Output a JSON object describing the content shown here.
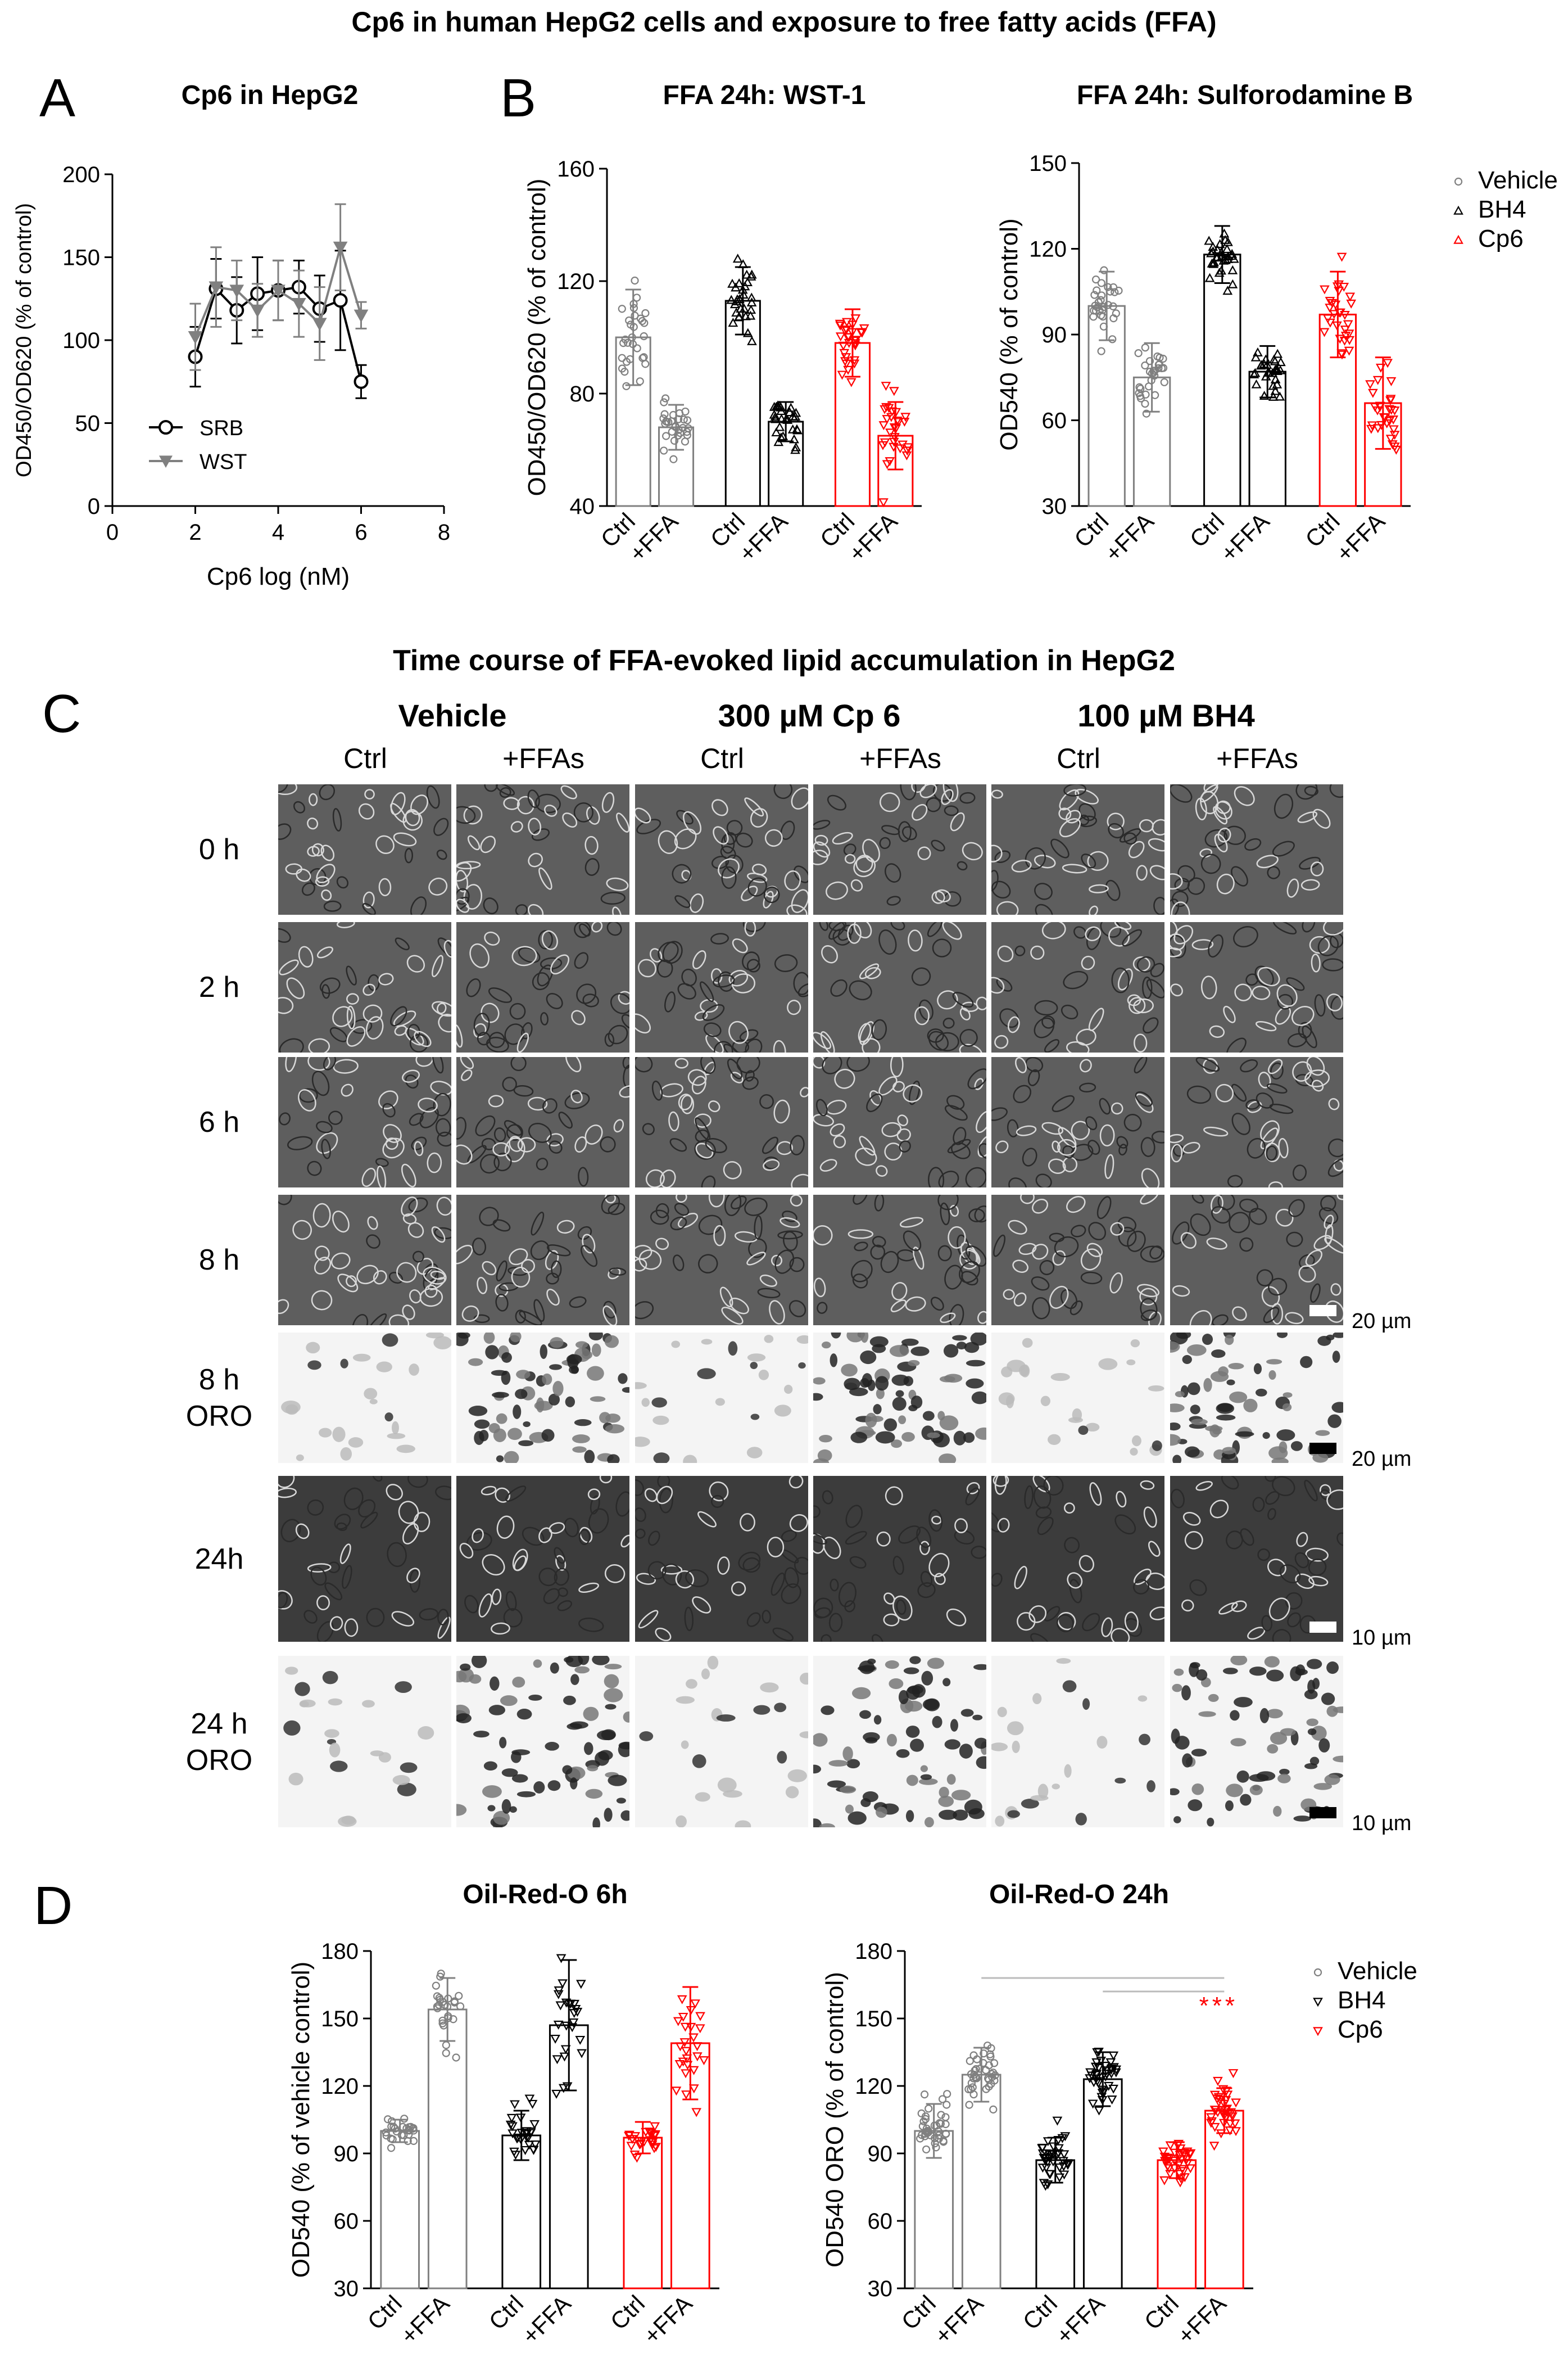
{
  "figure_title": "Cp6 in human HepG2 cells and exposure to free fatty acids (FFA)",
  "panels": {
    "A": "A",
    "B": "B",
    "C": "C",
    "D": "D"
  },
  "section_c_title": "Time course of FFA-evoked lipid accumulation in HepG2",
  "legend": {
    "vehicle": "Vehicle",
    "bh4": "BH4",
    "cp6": "Cp6"
  },
  "colors": {
    "vehicle": "#808080",
    "bh4": "#000000",
    "cp6": "#ff0000",
    "srb": "#000000",
    "wst": "#808080"
  },
  "chart_data": [
    {
      "id": "A",
      "type": "line",
      "title": "Cp6 in HepG2",
      "xlabel": "Cp6 log (nM)",
      "ylabel": "OD450/OD620 (% of control)",
      "xlim": [
        0,
        8
      ],
      "ylim": [
        0,
        200
      ],
      "xticks": [
        0,
        2,
        4,
        6,
        8
      ],
      "yticks": [
        0,
        50,
        100,
        150,
        200
      ],
      "legend_position": "bottom-left",
      "series": [
        {
          "name": "SRB",
          "marker": "circle-open",
          "x": [
            2,
            2.5,
            3,
            3.5,
            4,
            4.5,
            5,
            5.5,
            6
          ],
          "y": [
            90,
            131,
            118,
            128,
            130,
            132,
            119,
            124,
            75
          ],
          "err": [
            18,
            18,
            20,
            22,
            18,
            16,
            20,
            30,
            10
          ]
        },
        {
          "name": "WST",
          "marker": "triangle-down",
          "x": [
            2,
            2.5,
            3,
            3.5,
            4,
            4.5,
            5,
            5.5,
            6
          ],
          "y": [
            102,
            132,
            130,
            118,
            130,
            122,
            110,
            156,
            115
          ],
          "err": [
            20,
            24,
            18,
            16,
            18,
            20,
            22,
            26,
            8
          ]
        }
      ]
    },
    {
      "id": "B1",
      "type": "bar",
      "title": "FFA 24h: WST-1",
      "ylabel": "OD450/OD620 (% of control)",
      "ylim": [
        40,
        160
      ],
      "yticks": [
        40,
        80,
        120,
        160
      ],
      "categories": [
        "Ctrl",
        "+FFA",
        "Ctrl",
        "+FFA",
        "Ctrl",
        "+FFA"
      ],
      "groups": [
        "vehicle",
        "vehicle",
        "bh4",
        "bh4",
        "cp6",
        "cp6"
      ],
      "values": [
        100,
        68,
        113,
        70,
        98,
        65
      ],
      "sd": [
        17,
        8,
        12,
        7,
        12,
        12
      ]
    },
    {
      "id": "B2",
      "type": "bar",
      "title": "FFA 24h: Sulforodamine  B",
      "ylabel": "OD540 (% of control)",
      "ylim": [
        30,
        150
      ],
      "yticks": [
        30,
        60,
        90,
        120,
        150
      ],
      "categories": [
        "Ctrl",
        "+FFA",
        "Ctrl",
        "+FFA",
        "Ctrl",
        "+FFA"
      ],
      "groups": [
        "vehicle",
        "vehicle",
        "bh4",
        "bh4",
        "cp6",
        "cp6"
      ],
      "values": [
        100,
        75,
        118,
        77,
        97,
        66
      ],
      "sd": [
        12,
        12,
        10,
        9,
        15,
        16
      ],
      "legend_position": "top-right"
    },
    {
      "id": "D1",
      "type": "bar",
      "title": "Oil-Red-O 6h",
      "ylabel": "OD540 (% of vehicle control)",
      "ylim": [
        30,
        180
      ],
      "yticks": [
        30,
        60,
        90,
        120,
        150,
        180
      ],
      "categories": [
        "Ctrl",
        "+FFA",
        "Ctrl",
        "+FFA",
        "Ctrl",
        "+FFA"
      ],
      "groups": [
        "vehicle",
        "vehicle",
        "bh4",
        "bh4",
        "cp6",
        "cp6"
      ],
      "values": [
        100,
        154,
        98,
        147,
        97,
        139
      ],
      "sd": [
        5,
        14,
        11,
        29,
        7,
        25
      ]
    },
    {
      "id": "D2",
      "type": "bar",
      "title": "Oil-Red-O 24h",
      "ylabel": "OD540 ORO (% of control)",
      "ylim": [
        30,
        180
      ],
      "yticks": [
        30,
        60,
        90,
        120,
        150,
        180
      ],
      "categories": [
        "Ctrl",
        "+FFA",
        "Ctrl",
        "+FFA",
        "Ctrl",
        "+FFA"
      ],
      "groups": [
        "vehicle",
        "vehicle",
        "bh4",
        "bh4",
        "cp6",
        "cp6"
      ],
      "values": [
        100,
        125,
        87,
        123,
        87,
        109
      ],
      "sd": [
        12,
        12,
        10,
        12,
        8,
        10
      ],
      "annotation": "***",
      "legend_position": "top-right"
    }
  ],
  "micrographs": {
    "column_groups": [
      "Vehicle",
      "300 µM Cp 6",
      "100 µM BH4"
    ],
    "column_subs": [
      "Ctrl",
      "+FFAs",
      "Ctrl",
      "+FFAs",
      "Ctrl",
      "+FFAs"
    ],
    "rows": [
      {
        "label": "0 h",
        "kind": "phase",
        "scale": ""
      },
      {
        "label": "2 h",
        "kind": "phase",
        "scale": ""
      },
      {
        "label": "6 h",
        "kind": "phase",
        "scale": ""
      },
      {
        "label": "8 h",
        "kind": "phase",
        "scale": "20 µm"
      },
      {
        "label": "8 h\nORO",
        "kind": "oro",
        "scale": "20 µm"
      },
      {
        "label": "24h",
        "kind": "phase",
        "scale": "10 µm"
      },
      {
        "label": "24 h\nORO",
        "kind": "oro",
        "scale": "10 µm"
      }
    ]
  }
}
